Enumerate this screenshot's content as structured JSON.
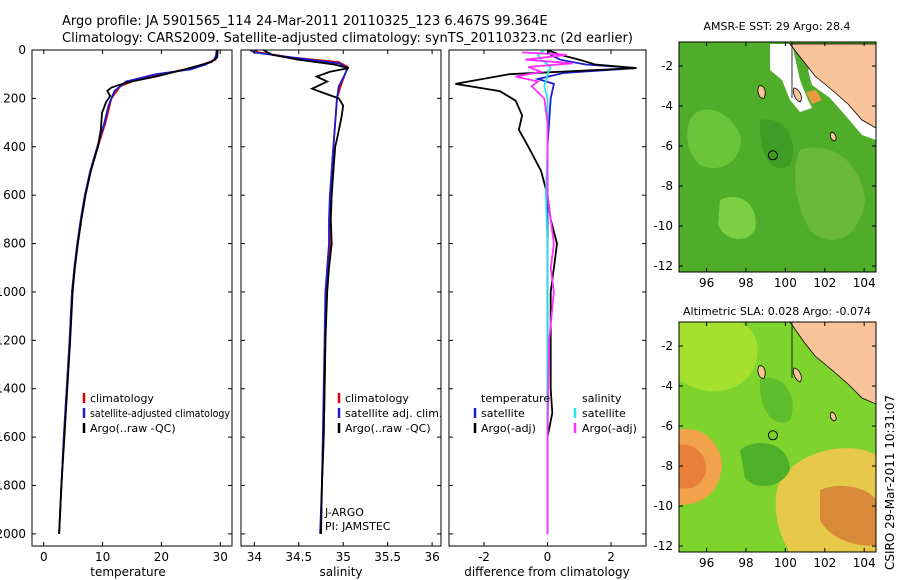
{
  "title": {
    "line1": "Argo profile: JA 5901565_114 24-Mar-2011 20110325_123 6.467S 99.364E",
    "line2": "Climatology: CARS2009. Satellite-adjusted climatology: synTS_20110323.nc (2d earlier)"
  },
  "colors": {
    "climatology": "#e00000",
    "satellite": "#1c1cd0",
    "argo": "#000000",
    "sat_salinity": "#22e6f0",
    "argo_salinity": "#ff30ff",
    "land": "#f9c49a"
  },
  "side_label": "CSIRO 29-Mar-2011 10:31:07",
  "chart_data": [
    {
      "type": "line",
      "id": "temperature",
      "xlabel": "temperature",
      "ylabel": "",
      "xlim": [
        -2,
        32
      ],
      "ylim": [
        2050,
        0
      ],
      "x_ticks": [
        0,
        10,
        20,
        30
      ],
      "y_ticks": [
        0,
        200,
        400,
        600,
        800,
        1000,
        1200,
        1400,
        1600,
        1800,
        2000
      ],
      "legend": [
        "climatology",
        "satellite-adjusted climatology",
        "Argo(..raw -QC)"
      ],
      "series": [
        {
          "name": "climatology",
          "color": "#e00000",
          "points": [
            [
              29.6,
              0
            ],
            [
              29.5,
              20
            ],
            [
              29.2,
              40
            ],
            [
              27,
              60
            ],
            [
              24,
              80
            ],
            [
              20,
              100
            ],
            [
              16,
              120
            ],
            [
              13,
              150
            ],
            [
              11.5,
              200
            ],
            [
              10.5,
              300
            ],
            [
              9.2,
              400
            ],
            [
              8,
              500
            ],
            [
              7,
              600
            ],
            [
              6.3,
              700
            ],
            [
              5.7,
              800
            ],
            [
              5.2,
              900
            ],
            [
              4.8,
              1000
            ],
            [
              4.4,
              1200
            ],
            [
              3.9,
              1400
            ],
            [
              3.4,
              1600
            ],
            [
              3,
              1800
            ],
            [
              2.6,
              2000
            ]
          ]
        },
        {
          "name": "satellite-adjusted climatology",
          "color": "#1c1cd0",
          "points": [
            [
              29.4,
              0
            ],
            [
              29.3,
              20
            ],
            [
              29,
              40
            ],
            [
              27.5,
              60
            ],
            [
              25,
              80
            ],
            [
              19,
              100
            ],
            [
              14,
              130
            ],
            [
              12,
              170
            ],
            [
              11,
              230
            ],
            [
              10.3,
              300
            ],
            [
              9.1,
              400
            ],
            [
              7.9,
              500
            ],
            [
              7,
              600
            ],
            [
              6.3,
              700
            ],
            [
              5.7,
              800
            ],
            [
              5.2,
              900
            ],
            [
              4.8,
              1000
            ],
            [
              4.4,
              1200
            ],
            [
              3.9,
              1400
            ],
            [
              3.4,
              1600
            ],
            [
              3,
              1800
            ],
            [
              2.6,
              2000
            ]
          ]
        },
        {
          "name": "Argo(..raw -QC)",
          "color": "#000000",
          "points": [
            [
              29.5,
              0
            ],
            [
              29.5,
              30
            ],
            [
              28.5,
              50
            ],
            [
              24,
              80
            ],
            [
              19,
              110
            ],
            [
              14,
              135
            ],
            [
              11.5,
              155
            ],
            [
              10.8,
              170
            ],
            [
              11.3,
              190
            ],
            [
              10.6,
              215
            ],
            [
              9.9,
              260
            ],
            [
              9.7,
              330
            ],
            [
              9.2,
              400
            ],
            [
              8,
              500
            ],
            [
              7.1,
              600
            ],
            [
              6.4,
              700
            ],
            [
              5.8,
              800
            ],
            [
              5.3,
              900
            ],
            [
              4.9,
              1000
            ],
            [
              4.5,
              1200
            ],
            [
              4,
              1400
            ],
            [
              3.5,
              1600
            ],
            [
              3,
              1800
            ],
            [
              2.6,
              2000
            ]
          ]
        }
      ]
    },
    {
      "type": "line",
      "id": "salinity",
      "xlabel": "salinity",
      "ylabel": "",
      "xlim": [
        33.85,
        36.1
      ],
      "ylim": [
        2050,
        0
      ],
      "x_ticks": [
        34,
        34.5,
        35,
        35.5,
        36
      ],
      "y_ticks": [
        0,
        200,
        400,
        600,
        800,
        1000,
        1200,
        1400,
        1600,
        1800,
        2000
      ],
      "legend": [
        "climatology",
        "satellite adj. clim.",
        "Argo(..raw -QC)"
      ],
      "annotations": [
        "J-ARGO",
        "PI: JAMSTEC"
      ],
      "series": [
        {
          "name": "climatology",
          "color": "#e00000",
          "points": [
            [
              34,
              0
            ],
            [
              34.05,
              10
            ],
            [
              34.4,
              30
            ],
            [
              34.95,
              50
            ],
            [
              35.05,
              70
            ],
            [
              35.02,
              100
            ],
            [
              34.97,
              150
            ],
            [
              34.93,
              200
            ],
            [
              34.91,
              300
            ],
            [
              34.89,
              400
            ],
            [
              34.87,
              500
            ],
            [
              34.86,
              600
            ],
            [
              34.85,
              700
            ],
            [
              34.85,
              800
            ],
            [
              34.83,
              900
            ],
            [
              34.81,
              1000
            ],
            [
              34.8,
              1200
            ],
            [
              34.79,
              1400
            ],
            [
              34.78,
              1600
            ],
            [
              34.76,
              1800
            ],
            [
              34.75,
              2000
            ]
          ]
        },
        {
          "name": "satellite adj. clim.",
          "color": "#1c1cd0",
          "points": [
            [
              33.95,
              0
            ],
            [
              34,
              10
            ],
            [
              34.3,
              25
            ],
            [
              34.95,
              55
            ],
            [
              35.05,
              75
            ],
            [
              35.02,
              100
            ],
            [
              34.95,
              150
            ],
            [
              34.93,
              200
            ],
            [
              34.91,
              300
            ],
            [
              34.89,
              400
            ],
            [
              34.87,
              500
            ],
            [
              34.85,
              600
            ],
            [
              34.84,
              700
            ],
            [
              34.84,
              800
            ],
            [
              34.82,
              900
            ],
            [
              34.8,
              1000
            ],
            [
              34.79,
              1200
            ],
            [
              34.78,
              1400
            ],
            [
              34.77,
              1600
            ],
            [
              34.76,
              1800
            ],
            [
              34.74,
              2000
            ]
          ]
        },
        {
          "name": "Argo(..raw -QC)",
          "color": "#000000",
          "points": [
            [
              34.1,
              0
            ],
            [
              34.2,
              20
            ],
            [
              34.5,
              40
            ],
            [
              34.9,
              60
            ],
            [
              35.06,
              75
            ],
            [
              34.85,
              90
            ],
            [
              34.7,
              110
            ],
            [
              34.82,
              130
            ],
            [
              34.65,
              160
            ],
            [
              34.8,
              180
            ],
            [
              34.95,
              200
            ],
            [
              35.0,
              230
            ],
            [
              34.98,
              280
            ],
            [
              34.94,
              350
            ],
            [
              34.91,
              400
            ],
            [
              34.89,
              500
            ],
            [
              34.87,
              600
            ],
            [
              34.86,
              700
            ],
            [
              34.87,
              800
            ],
            [
              34.84,
              900
            ],
            [
              34.82,
              1000
            ],
            [
              34.8,
              1200
            ],
            [
              34.79,
              1400
            ],
            [
              34.78,
              1600
            ],
            [
              34.76,
              1800
            ],
            [
              34.75,
              2000
            ]
          ]
        }
      ]
    },
    {
      "type": "line",
      "id": "difference",
      "xlabel": "difference from climatology",
      "ylabel": "",
      "xlim": [
        -3.1,
        3.1
      ],
      "ylim": [
        2050,
        0
      ],
      "x_ticks": [
        -2,
        0,
        2
      ],
      "y_ticks": [
        0,
        200,
        400,
        600,
        800,
        1000,
        1200,
        1400,
        1600,
        1800,
        2000
      ],
      "legend_left_title": "temperature",
      "legend_right_title": "salinity",
      "legend": [
        "satellite",
        "Argo(-adj)",
        "satellite",
        "Argo(-adj)"
      ],
      "series": [
        {
          "name": "temperature satellite",
          "color": "#1c1cd0",
          "points": [
            [
              0,
              0
            ],
            [
              0.1,
              20
            ],
            [
              0.4,
              40
            ],
            [
              1.2,
              60
            ],
            [
              2.8,
              75
            ],
            [
              0.5,
              95
            ],
            [
              -0.3,
              120
            ],
            [
              0.2,
              140
            ],
            [
              0.1,
              200
            ],
            [
              0,
              400
            ],
            [
              0,
              800
            ],
            [
              0,
              1200
            ],
            [
              0,
              1600
            ],
            [
              0,
              2000
            ]
          ]
        },
        {
          "name": "temperature Argo(-adj)",
          "color": "#000000",
          "points": [
            [
              0,
              0
            ],
            [
              0.4,
              20
            ],
            [
              1.0,
              40
            ],
            [
              1.5,
              60
            ],
            [
              2.8,
              75
            ],
            [
              -1.2,
              100
            ],
            [
              -2.9,
              140
            ],
            [
              -1.5,
              170
            ],
            [
              -1.0,
              210
            ],
            [
              -0.8,
              270
            ],
            [
              -0.9,
              330
            ],
            [
              -0.6,
              400
            ],
            [
              -0.2,
              500
            ],
            [
              0,
              600
            ],
            [
              0.1,
              700
            ],
            [
              0.3,
              800
            ],
            [
              0.2,
              900
            ],
            [
              0.1,
              1000
            ],
            [
              0.1,
              1200
            ],
            [
              0.1,
              1400
            ],
            [
              0.15,
              1500
            ],
            [
              0,
              1600
            ],
            [
              0,
              2000
            ]
          ]
        },
        {
          "name": "salinity satellite",
          "color": "#22e6f0",
          "points": [
            [
              -0.1,
              0
            ],
            [
              -0.3,
              20
            ],
            [
              -0.2,
              40
            ],
            [
              0.1,
              70
            ],
            [
              0,
              100
            ],
            [
              -0.1,
              150
            ],
            [
              0,
              200
            ],
            [
              0,
              400
            ],
            [
              -0.05,
              600
            ],
            [
              0,
              800
            ],
            [
              0,
              1000
            ],
            [
              0,
              1200
            ],
            [
              0,
              1600
            ],
            [
              0,
              2000
            ]
          ]
        },
        {
          "name": "salinity Argo(-adj)",
          "color": "#ff30ff",
          "points": [
            [
              -0.8,
              10
            ],
            [
              0.6,
              20
            ],
            [
              -0.7,
              40
            ],
            [
              0.8,
              55
            ],
            [
              -0.6,
              70
            ],
            [
              -0.2,
              90
            ],
            [
              -1.0,
              110
            ],
            [
              -0.3,
              130
            ],
            [
              -0.5,
              150
            ],
            [
              -0.1,
              200
            ],
            [
              0,
              300
            ],
            [
              0,
              600
            ],
            [
              0.2,
              800
            ],
            [
              0.1,
              900
            ],
            [
              0.2,
              1000
            ],
            [
              0.05,
              1200
            ],
            [
              0,
              1600
            ],
            [
              0,
              2000
            ]
          ]
        }
      ]
    },
    {
      "type": "heatmap",
      "id": "sst",
      "title": "AMSR-E SST: 29 Argo: 28.4",
      "x_ticks": [
        96,
        98,
        100,
        102,
        104
      ],
      "y_ticks": [
        -2,
        -4,
        -6,
        -8,
        -10,
        -12
      ],
      "xlim": [
        94.6,
        104.6
      ],
      "ylim": [
        -12.3,
        -0.8
      ],
      "argo_lon": 99.364,
      "argo_lat": -6.467
    },
    {
      "type": "heatmap",
      "id": "sla",
      "title": "Altimetric SLA: 0.028 Argo: -0.074",
      "x_ticks": [
        96,
        98,
        100,
        102,
        104
      ],
      "y_ticks": [
        -2,
        -4,
        -6,
        -8,
        -10,
        -12
      ],
      "xlim": [
        94.6,
        104.6
      ],
      "ylim": [
        -12.3,
        -0.8
      ],
      "argo_lon": 99.364,
      "argo_lat": -6.467
    }
  ]
}
